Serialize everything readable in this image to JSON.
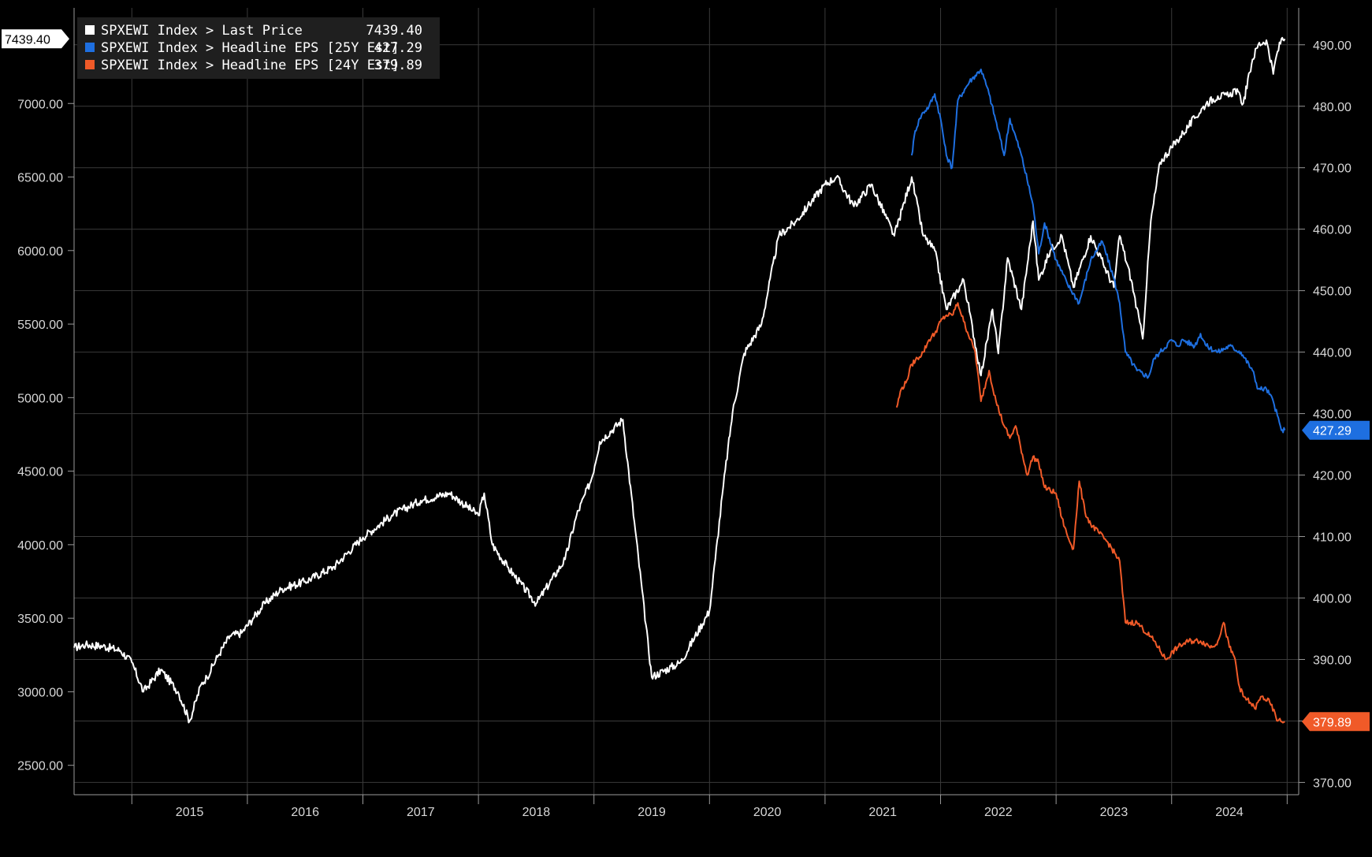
{
  "chart_data": {
    "type": "line",
    "legend_position": "top-left",
    "grid": true,
    "legend": [
      {
        "name": "SPXEWI Index > Last Price",
        "value": "7439.40",
        "color": "#ffffff"
      },
      {
        "name": "SPXEWI Index > Headline EPS [25Y Est]",
        "value": "427.29",
        "color": "#1e6fe0"
      },
      {
        "name": "SPXEWI Index > Headline EPS [24Y Est]",
        "value": "379.89",
        "color": "#f05a28"
      }
    ],
    "x_range": [
      2014.5,
      2025.1
    ],
    "x_tick_labels": [
      "2015",
      "2016",
      "2017",
      "2018",
      "2019",
      "2020",
      "2021",
      "2022",
      "2023",
      "2024"
    ],
    "x_ticks": [
      2015,
      2016,
      2017,
      2018,
      2019,
      2020,
      2021,
      2022,
      2023,
      2024
    ],
    "left_axis": {
      "range": [
        2300,
        7650
      ],
      "ticks": [
        2500,
        3000,
        3500,
        4000,
        4500,
        5000,
        5500,
        6000,
        6500,
        7000
      ],
      "tick_labels": [
        "2500.00",
        "3000.00",
        "3500.00",
        "4000.00",
        "4500.00",
        "5000.00",
        "5500.00",
        "6000.00",
        "6500.00",
        "7000.00"
      ],
      "last_value_label": "7439.40"
    },
    "right_axis": {
      "range": [
        368,
        496
      ],
      "ticks": [
        370,
        380,
        390,
        400,
        410,
        420,
        430,
        440,
        450,
        460,
        470,
        480,
        490
      ],
      "tick_labels": [
        "370.00",
        "380.00",
        "390.00",
        "400.00",
        "410.00",
        "420.00",
        "430.00",
        "440.00",
        "450.00",
        "460.00",
        "470.00",
        "480.00",
        "490.00"
      ],
      "last_value_labels": [
        "427.29",
        "379.89"
      ]
    },
    "series": [
      {
        "name": "SPXEWI Index > Last Price",
        "axis": "left",
        "color": "#ffffff",
        "x": [
          2014.5,
          2014.6,
          2014.75,
          2014.9,
          2015.0,
          2015.1,
          2015.25,
          2015.4,
          2015.5,
          2015.6,
          2015.65,
          2015.75,
          2015.85,
          2015.95,
          2016.05,
          2016.15,
          2016.3,
          2016.5,
          2016.75,
          2017.0,
          2017.25,
          2017.5,
          2017.75,
          2018.0,
          2018.05,
          2018.12,
          2018.25,
          2018.5,
          2018.75,
          2018.85,
          2018.98,
          2019.05,
          2019.25,
          2019.5,
          2019.75,
          2020.0,
          2020.05,
          2020.12,
          2020.2,
          2020.3,
          2020.45,
          2020.6,
          2020.75,
          2020.85,
          2021.0,
          2021.1,
          2021.25,
          2021.4,
          2021.6,
          2021.75,
          2021.85,
          2021.95,
          2022.05,
          2022.2,
          2022.35,
          2022.45,
          2022.5,
          2022.58,
          2022.7,
          2022.8,
          2022.85,
          2022.95,
          2023.05,
          2023.15,
          2023.3,
          2023.5,
          2023.55,
          2023.65,
          2023.75,
          2023.82,
          2023.9,
          2024.0,
          2024.1,
          2024.2,
          2024.3,
          2024.4,
          2024.5,
          2024.55,
          2024.62,
          2024.7,
          2024.75,
          2024.82,
          2024.88,
          2024.9,
          2024.95,
          2024.98
        ],
        "y": [
          3300,
          3320,
          3310,
          3280,
          3200,
          3000,
          3150,
          3000,
          2800,
          3050,
          3100,
          3250,
          3380,
          3400,
          3500,
          3600,
          3700,
          3750,
          3850,
          4050,
          4200,
          4300,
          4350,
          4200,
          4350,
          4000,
          3850,
          3600,
          3900,
          4200,
          4450,
          4700,
          4850,
          3100,
          3200,
          3550,
          3900,
          4400,
          4900,
          5300,
          5500,
          6100,
          6200,
          6300,
          6450,
          6500,
          6300,
          6450,
          6100,
          6500,
          6100,
          6000,
          5600,
          5800,
          5150,
          5600,
          5300,
          5950,
          5600,
          6200,
          5800,
          6000,
          6100,
          5750,
          6100,
          5750,
          6100,
          5800,
          5400,
          6200,
          6600,
          6700,
          6800,
          6900,
          7000,
          7050,
          7050,
          7100,
          7000,
          7300,
          7400,
          7430,
          7200,
          7300,
          7439.4,
          7439.4
        ]
      },
      {
        "name": "SPXEWI Index > Headline EPS [25Y Est]",
        "axis": "right",
        "color": "#1e6fe0",
        "x": [
          2021.75,
          2021.78,
          2021.82,
          2021.85,
          2021.9,
          2021.95,
          2022.0,
          2022.05,
          2022.1,
          2022.15,
          2022.25,
          2022.35,
          2022.42,
          2022.5,
          2022.55,
          2022.6,
          2022.7,
          2022.8,
          2022.85,
          2022.9,
          2023.0,
          2023.1,
          2023.2,
          2023.3,
          2023.4,
          2023.5,
          2023.55,
          2023.6,
          2023.7,
          2023.8,
          2023.85,
          2023.9,
          2024.0,
          2024.05,
          2024.1,
          2024.2,
          2024.25,
          2024.3,
          2024.4,
          2024.5,
          2024.6,
          2024.7,
          2024.75,
          2024.82,
          2024.88,
          2024.95,
          2024.98
        ],
        "y": [
          472,
          476,
          478,
          479,
          480,
          482,
          478,
          472,
          470,
          481,
          484,
          486,
          482,
          476,
          472,
          478,
          472,
          464,
          456,
          461,
          455,
          451,
          448,
          455,
          458,
          452,
          448,
          440,
          437,
          436,
          439,
          440,
          442,
          441,
          442,
          441,
          443,
          441,
          440,
          441,
          440,
          437,
          434,
          434,
          432,
          427.29,
          427.29
        ]
      },
      {
        "name": "SPXEWI Index > Headline EPS [24Y Est]",
        "axis": "right",
        "color": "#f05a28",
        "x": [
          2021.62,
          2021.66,
          2021.7,
          2021.75,
          2021.8,
          2021.85,
          2021.9,
          2021.95,
          2022.0,
          2022.05,
          2022.1,
          2022.15,
          2022.2,
          2022.3,
          2022.35,
          2022.42,
          2022.48,
          2022.55,
          2022.6,
          2022.65,
          2022.75,
          2022.8,
          2022.85,
          2022.9,
          2023.0,
          2023.05,
          2023.1,
          2023.15,
          2023.2,
          2023.25,
          2023.3,
          2023.45,
          2023.55,
          2023.6,
          2023.7,
          2023.75,
          2023.85,
          2023.95,
          2024.05,
          2024.15,
          2024.25,
          2024.35,
          2024.4,
          2024.45,
          2024.5,
          2024.55,
          2024.58,
          2024.62,
          2024.68,
          2024.72,
          2024.78,
          2024.85,
          2024.92,
          2024.98
        ],
        "y": [
          431,
          434,
          435,
          438,
          439,
          440,
          442,
          443,
          445,
          446,
          446,
          448,
          445,
          440,
          432,
          437,
          432,
          428,
          426,
          428,
          420,
          423,
          422,
          418,
          417,
          413,
          410,
          408,
          419,
          414,
          412,
          409,
          406,
          396,
          396,
          395,
          393,
          390,
          392,
          393,
          393,
          392,
          393,
          396,
          392,
          390,
          386,
          384,
          383,
          382,
          384,
          383,
          380,
          379.89
        ]
      }
    ]
  }
}
